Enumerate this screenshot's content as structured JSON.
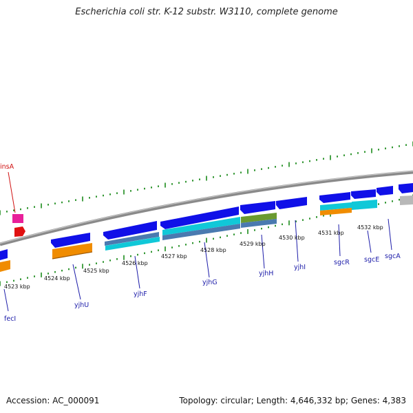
{
  "title": "Escherichia coli str. K-12 substr. W3110, complete genome",
  "footer": {
    "accession": "Accession: AC_000091",
    "topology": "Topology: circular; Length: 4,646,332 bp; Genes: 4,383"
  },
  "colors": {
    "backbone": "#8a8a8a",
    "tick": "#1a8a1a",
    "label_gene": "#1a1aa8",
    "label_mobile": "#d01010",
    "cds": "#1010e8",
    "orange": "#f08c00",
    "cyan": "#10c8d8",
    "steel": "#4a7ab0",
    "olive": "#6a9a30",
    "pink": "#e8209a",
    "red": "#e01010",
    "gray": "#b8b8b8"
  },
  "kbp_labels": [
    "4523 kbp",
    "4524 kbp",
    "4525 kbp",
    "4526 kbp",
    "4527 kbp",
    "4528 kbp",
    "4529 kbp",
    "4530 kbp",
    "4531 kbp",
    "4532 kbp"
  ],
  "gene_labels": [
    {
      "name": "fecI",
      "color": "#1a1aa8"
    },
    {
      "name": "yjhU",
      "color": "#1a1aa8"
    },
    {
      "name": "yjhF",
      "color": "#1a1aa8"
    },
    {
      "name": "yjhG",
      "color": "#1a1aa8"
    },
    {
      "name": "yjhH",
      "color": "#1a1aa8"
    },
    {
      "name": "yjhI",
      "color": "#1a1aa8"
    },
    {
      "name": "sgcR",
      "color": "#1a1aa8"
    },
    {
      "name": "sgcE",
      "color": "#1a1aa8"
    },
    {
      "name": "sgcA",
      "color": "#1a1aa8"
    },
    {
      "name": "insA",
      "color": "#d01010"
    }
  ]
}
